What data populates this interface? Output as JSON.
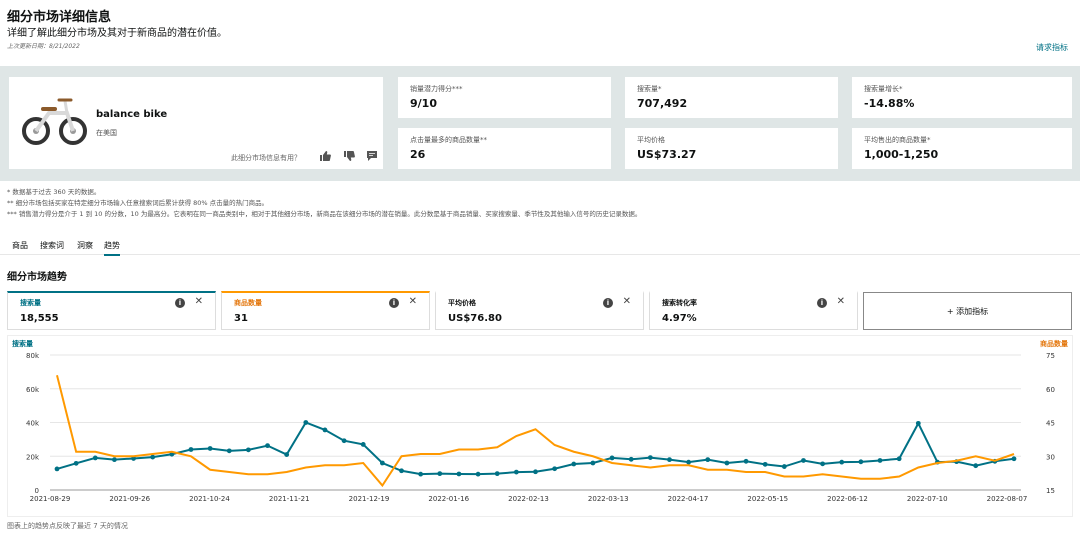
{
  "header": {
    "title": "细分市场详细信息",
    "subtitle": "详细了解此细分市场及其对于新商品的潜在价值。",
    "updated": "上次更新日期：8/21/2022",
    "help_link": "请求指标"
  },
  "product": {
    "name": "balance bike",
    "region": "在美国",
    "feedback_question": "此细分市场信息有用？"
  },
  "metrics": [
    {
      "label": "销量潜力得分***",
      "value": "9/10"
    },
    {
      "label": "搜索量*",
      "value": "707,492"
    },
    {
      "label": "搜索量增长*",
      "value": "-14.88%"
    },
    {
      "label": "点击量最多的商品数量**",
      "value": "26"
    },
    {
      "label": "平均价格",
      "value": "US$73.27"
    },
    {
      "label": "平均售出的商品数量*",
      "value": "1,000-1,250"
    }
  ],
  "notes": [
    "* 数据基于过去 360 天的数据。",
    "** 细分市场包括买家在特定细分市场输入任意搜索词后累计获得 80% 点击量的热门商品。",
    "*** 销售潜力得分是介于 1 到 10 的分数，10 为最高分。它表明在同一商品类别中，相对于其他细分市场，新商品在该细分市场的潜在销量。此分数是基于商品销量、买家搜索量、季节性及其他输入信号的历史记录数据。"
  ],
  "tabs": [
    "商品",
    "搜索词",
    "洞察",
    "趋势"
  ],
  "active_tab": "趋势",
  "section_title": "细分市场趋势",
  "trend_cards": [
    {
      "label": "搜索量",
      "value": "18,555",
      "color": "#007185"
    },
    {
      "label": "商品数量",
      "value": "31",
      "color": "#ff9900"
    },
    {
      "label": "平均价格",
      "value": "US$76.80",
      "color": "#0f1111"
    },
    {
      "label": "搜索转化率",
      "value": "4.97%",
      "color": "#0f1111"
    }
  ],
  "add_metric": "+ 添加指标",
  "footer_note": "图表上的趋势点反映了最近 7 天的情况",
  "chart_data": {
    "type": "line",
    "left_axis_label": "搜索量",
    "right_axis_label": "商品数量",
    "x_ticks": [
      "2021-08-29",
      "2021-09-26",
      "2021-10-24",
      "2021-11-21",
      "2021-12-19",
      "2022-01-16",
      "2022-02-13",
      "2022-03-13",
      "2022-04-17",
      "2022-05-15",
      "2022-06-12",
      "2022-07-10",
      "2022-08-07"
    ],
    "left_ticks": [
      "0",
      "20k",
      "40k",
      "60k",
      "80k"
    ],
    "right_ticks": [
      "15",
      "30",
      "45",
      "60",
      "75"
    ],
    "left_ylim": [
      0,
      80000
    ],
    "right_ylim": [
      15,
      75
    ],
    "series": [
      {
        "name": "搜索量",
        "color": "#007185",
        "axis": "left",
        "values": [
          12500,
          15800,
          19000,
          18000,
          18700,
          19500,
          21200,
          24000,
          24600,
          23200,
          23800,
          26300,
          21000,
          40000,
          35600,
          29200,
          27000,
          16000,
          11400,
          9400,
          9700,
          9500,
          9400,
          9700,
          10600,
          10800,
          12600,
          15400,
          16000,
          19000,
          18200,
          19200,
          18000,
          16500,
          18000,
          16000,
          17000,
          15200,
          13900,
          17500,
          15500,
          16500,
          16700,
          17500,
          18500,
          39500,
          16500,
          16800,
          14400,
          17000,
          18500
        ]
      },
      {
        "name": "商品数量",
        "color": "#ff9900",
        "axis": "right",
        "values": [
          66,
          32,
          32,
          30,
          30,
          31,
          32,
          30,
          24,
          23,
          22,
          22,
          23,
          25,
          26,
          26,
          27,
          17,
          30,
          31,
          31,
          33,
          33,
          34,
          39,
          42,
          35,
          32,
          30,
          27,
          26,
          25,
          26,
          26,
          24,
          24,
          23,
          23,
          21,
          21,
          22,
          21,
          20,
          20,
          21,
          25,
          27,
          28,
          30,
          28,
          31
        ]
      }
    ]
  }
}
